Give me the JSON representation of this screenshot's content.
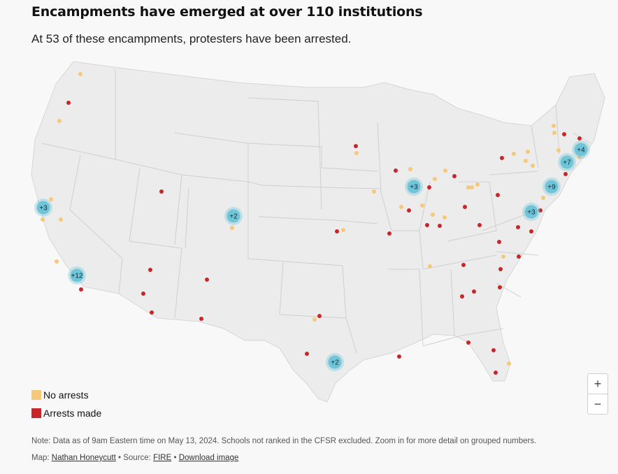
{
  "title": "Encampments have emerged at over 110 institutions",
  "subtitle": "At 53 of these encampments, protesters have been arrested.",
  "colors": {
    "no_arrests": "#f6c879",
    "arrests_made": "#c8272a",
    "cluster_fill": "#70c5d8",
    "land": "#ececec",
    "borders": "#cccccc",
    "background": "#f8f8f8"
  },
  "legend": {
    "no_arrests": "No arrests",
    "arrests_made": "Arrests made"
  },
  "zoom": {
    "in_label": "+",
    "out_label": "−"
  },
  "note": "Note: Data as of 9am Eastern time on May 13, 2024. Schools not ranked in the CFSR excluded. Zoom in for more detail on grouped numbers.",
  "credits": {
    "map_prefix": "Map: ",
    "author": "Nathan Honeycutt",
    "source_prefix": " • Source: ",
    "source": "FIRE",
    "separator": " • ",
    "download": "Download image"
  },
  "clusters": [
    {
      "label": "+3",
      "region": "San Francisco Bay Area"
    },
    {
      "label": "+12",
      "region": "Los Angeles"
    },
    {
      "label": "+2",
      "region": "Colorado"
    },
    {
      "label": "+2",
      "region": "Houston"
    },
    {
      "label": "+3",
      "region": "Chicago"
    },
    {
      "label": "+3",
      "region": "Washington DC"
    },
    {
      "label": "+9",
      "region": "New York City"
    },
    {
      "label": "+7",
      "region": "Connecticut / Rhode Island"
    },
    {
      "label": "+4",
      "region": "Boston"
    }
  ]
}
